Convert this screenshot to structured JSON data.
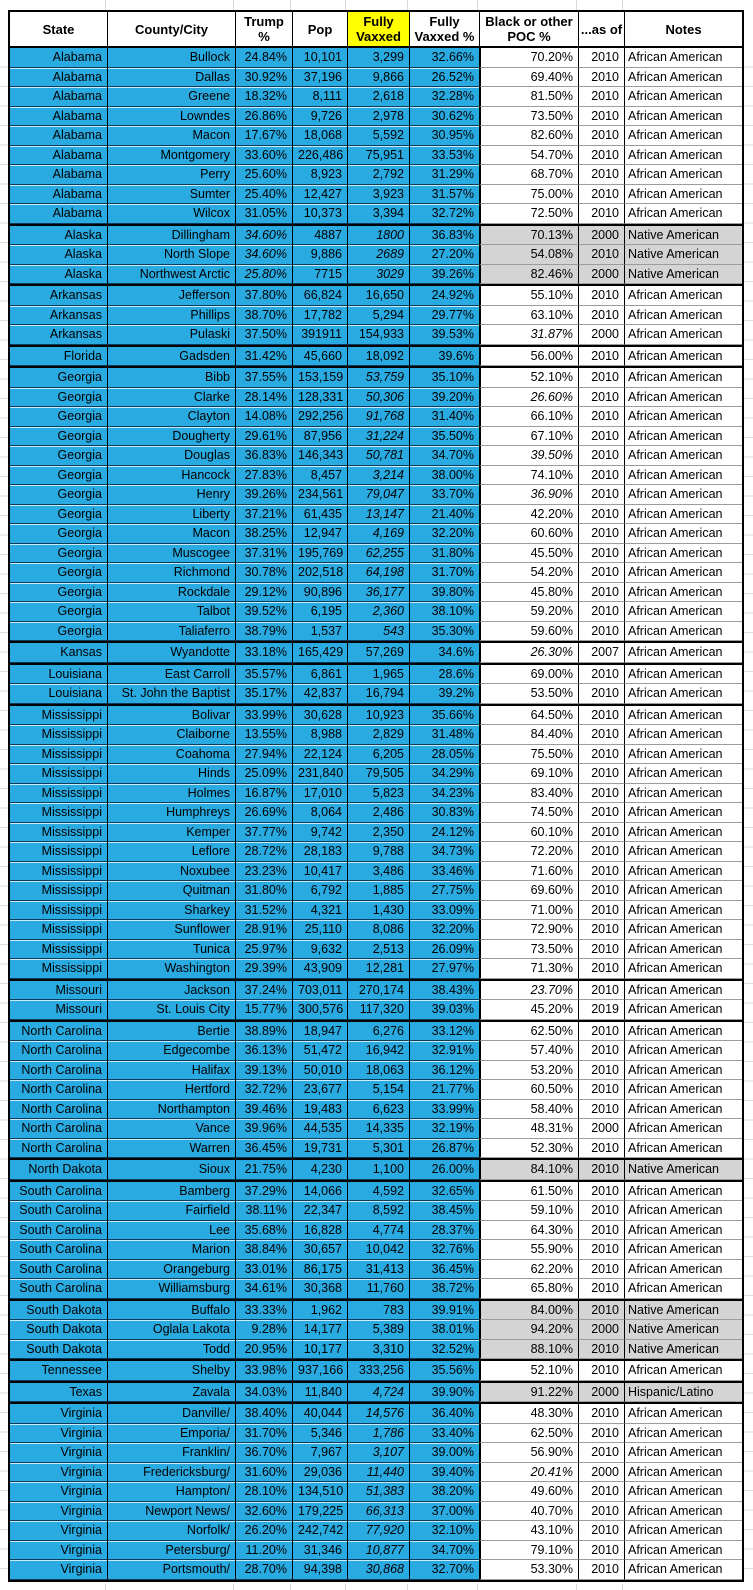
{
  "table": {
    "colors": {
      "row_blue": "#29abe2",
      "highlight_yellow": "#ffff00",
      "gray_row": "#d4d4d4",
      "border_dark": "#000000"
    },
    "keys": [
      "state",
      "county_city",
      "trump_pct",
      "pop",
      "fully_vaxxed",
      "fully_vaxxed_pct",
      "poc_pct",
      "as_of",
      "notes"
    ],
    "headers": [
      {
        "label": "State"
      },
      {
        "label": "County/City"
      },
      {
        "label": "Trump %"
      },
      {
        "label": "Pop"
      },
      {
        "label": "Fully Vaxxed",
        "highlight": true
      },
      {
        "label": "Fully Vaxxed %"
      },
      {
        "label": "Black or other POC %"
      },
      {
        "label": "...as of"
      },
      {
        "label": "Notes"
      }
    ],
    "flag_legend": "s=start of state group (thick border), g=gray shaded right columns, i=italic cells (t=trump, v=fully vaxxed, p=poc)",
    "rows": [
      [
        "Alabama",
        "Bullock",
        "24.84%",
        "10,101",
        "3,299",
        "32.66%",
        "70.20%",
        "2010",
        "African American",
        {
          "s": 1
        }
      ],
      [
        "Alabama",
        "Dallas",
        "30.92%",
        "37,196",
        "9,866",
        "26.52%",
        "69.40%",
        "2010",
        "African American"
      ],
      [
        "Alabama",
        "Greene",
        "18.32%",
        "8,111",
        "2,618",
        "32.28%",
        "81.50%",
        "2010",
        "African American"
      ],
      [
        "Alabama",
        "Lowndes",
        "26.86%",
        "9,726",
        "2,978",
        "30.62%",
        "73.50%",
        "2010",
        "African American"
      ],
      [
        "Alabama",
        "Macon",
        "17.67%",
        "18,068",
        "5,592",
        "30.95%",
        "82.60%",
        "2010",
        "African American"
      ],
      [
        "Alabama",
        "Montgomery",
        "33.60%",
        "226,486",
        "75,951",
        "33.53%",
        "54.70%",
        "2010",
        "African American"
      ],
      [
        "Alabama",
        "Perry",
        "25.60%",
        "8,923",
        "2,792",
        "31.29%",
        "68.70%",
        "2010",
        "African American"
      ],
      [
        "Alabama",
        "Sumter",
        "25.40%",
        "12,427",
        "3,923",
        "31.57%",
        "75.00%",
        "2010",
        "African American"
      ],
      [
        "Alabama",
        "Wilcox",
        "31.05%",
        "10,373",
        "3,394",
        "32.72%",
        "72.50%",
        "2010",
        "African American"
      ],
      [
        "Alaska",
        "Dillingham",
        "34.60%",
        "4887",
        "1800",
        "36.83%",
        "70.13%",
        "2000",
        "Native American",
        {
          "s": 1,
          "g": 1,
          "i": "tv"
        }
      ],
      [
        "Alaska",
        "North Slope",
        "34.60%",
        "9,886",
        "2689",
        "27.20%",
        "54.08%",
        "2010",
        "Native American",
        {
          "g": 1,
          "i": "tv"
        }
      ],
      [
        "Alaska",
        "Northwest Arctic",
        "25.80%",
        "7715",
        "3029",
        "39.26%",
        "82.46%",
        "2000",
        "Native American",
        {
          "g": 1,
          "i": "tv"
        }
      ],
      [
        "Arkansas",
        "Jefferson",
        "37.80%",
        "66,824",
        "16,650",
        "24.92%",
        "55.10%",
        "2010",
        "African American",
        {
          "s": 1
        }
      ],
      [
        "Arkansas",
        "Phillips",
        "38.70%",
        "17,782",
        "5,294",
        "29.77%",
        "63.10%",
        "2010",
        "African American"
      ],
      [
        "Arkansas",
        "Pulaski",
        "37.50%",
        "391911",
        "154,933",
        "39.53%",
        "31.87%",
        "2000",
        "African American",
        {
          "i": "p"
        }
      ],
      [
        "Florida",
        "Gadsden",
        "31.42%",
        "45,660",
        "18,092",
        "39.6%",
        "56.00%",
        "2010",
        "African American",
        {
          "s": 1
        }
      ],
      [
        "Georgia",
        "Bibb",
        "37.55%",
        "153,159",
        "53,759",
        "35.10%",
        "52.10%",
        "2010",
        "African American",
        {
          "s": 1,
          "i": "v"
        }
      ],
      [
        "Georgia",
        "Clarke",
        "28.14%",
        "128,331",
        "50,306",
        "39.20%",
        "26.60%",
        "2010",
        "African American",
        {
          "i": "vp"
        }
      ],
      [
        "Georgia",
        "Clayton",
        "14.08%",
        "292,256",
        "91,768",
        "31.40%",
        "66.10%",
        "2010",
        "African American",
        {
          "i": "v"
        }
      ],
      [
        "Georgia",
        "Dougherty",
        "29.61%",
        "87,956",
        "31,224",
        "35.50%",
        "67.10%",
        "2010",
        "African American",
        {
          "i": "v"
        }
      ],
      [
        "Georgia",
        "Douglas",
        "36.83%",
        "146,343",
        "50,781",
        "34.70%",
        "39.50%",
        "2010",
        "African American",
        {
          "i": "vp"
        }
      ],
      [
        "Georgia",
        "Hancock",
        "27.83%",
        "8,457",
        "3,214",
        "38.00%",
        "74.10%",
        "2010",
        "African American",
        {
          "i": "v"
        }
      ],
      [
        "Georgia",
        "Henry",
        "39.26%",
        "234,561",
        "79,047",
        "33.70%",
        "36.90%",
        "2010",
        "African American",
        {
          "i": "vp"
        }
      ],
      [
        "Georgia",
        "Liberty",
        "37.21%",
        "61,435",
        "13,147",
        "21.40%",
        "42.20%",
        "2010",
        "African American",
        {
          "i": "v"
        }
      ],
      [
        "Georgia",
        "Macon",
        "38.25%",
        "12,947",
        "4,169",
        "32.20%",
        "60.60%",
        "2010",
        "African American",
        {
          "i": "v"
        }
      ],
      [
        "Georgia",
        "Muscogee",
        "37.31%",
        "195,769",
        "62,255",
        "31.80%",
        "45.50%",
        "2010",
        "African American",
        {
          "i": "v"
        }
      ],
      [
        "Georgia",
        "Richmond",
        "30.78%",
        "202,518",
        "64,198",
        "31.70%",
        "54.20%",
        "2010",
        "African American",
        {
          "i": "v"
        }
      ],
      [
        "Georgia",
        "Rockdale",
        "29.12%",
        "90,896",
        "36,177",
        "39.80%",
        "45.80%",
        "2010",
        "African American",
        {
          "i": "v"
        }
      ],
      [
        "Georgia",
        "Talbot",
        "39.52%",
        "6,195",
        "2,360",
        "38.10%",
        "59.20%",
        "2010",
        "African American",
        {
          "i": "v"
        }
      ],
      [
        "Georgia",
        "Taliaferro",
        "38.79%",
        "1,537",
        "543",
        "35.30%",
        "59.60%",
        "2010",
        "African American",
        {
          "i": "v"
        }
      ],
      [
        "Kansas",
        "Wyandotte",
        "33.18%",
        "165,429",
        "57,269",
        "34.6%",
        "26.30%",
        "2007",
        "African American",
        {
          "s": 1,
          "i": "p"
        }
      ],
      [
        "Louisiana",
        "East Carroll",
        "35.57%",
        "6,861",
        "1,965",
        "28.6%",
        "69.00%",
        "2010",
        "African American",
        {
          "s": 1
        }
      ],
      [
        "Louisiana",
        "St. John the Baptist",
        "35.17%",
        "42,837",
        "16,794",
        "39.2%",
        "53.50%",
        "2010",
        "African American"
      ],
      [
        "Mississippi",
        "Bolivar",
        "33.99%",
        "30,628",
        "10,923",
        "35.66%",
        "64.50%",
        "2010",
        "African American",
        {
          "s": 1
        }
      ],
      [
        "Mississippi",
        "Claiborne",
        "13.55%",
        "8,988",
        "2,829",
        "31.48%",
        "84.40%",
        "2010",
        "African American"
      ],
      [
        "Mississippi",
        "Coahoma",
        "27.94%",
        "22,124",
        "6,205",
        "28.05%",
        "75.50%",
        "2010",
        "African American"
      ],
      [
        "Mississippi",
        "Hinds",
        "25.09%",
        "231,840",
        "79,505",
        "34.29%",
        "69.10%",
        "2010",
        "African American"
      ],
      [
        "Mississippi",
        "Holmes",
        "16.87%",
        "17,010",
        "5,823",
        "34.23%",
        "83.40%",
        "2010",
        "African American"
      ],
      [
        "Mississippi",
        "Humphreys",
        "26.69%",
        "8,064",
        "2,486",
        "30.83%",
        "74.50%",
        "2010",
        "African American"
      ],
      [
        "Mississippi",
        "Kemper",
        "37.77%",
        "9,742",
        "2,350",
        "24.12%",
        "60.10%",
        "2010",
        "African American"
      ],
      [
        "Mississippi",
        "Leflore",
        "28.72%",
        "28,183",
        "9,788",
        "34.73%",
        "72.20%",
        "2010",
        "African American"
      ],
      [
        "Mississippi",
        "Noxubee",
        "23.23%",
        "10,417",
        "3,486",
        "33.46%",
        "71.60%",
        "2010",
        "African American"
      ],
      [
        "Mississippi",
        "Quitman",
        "31.80%",
        "6,792",
        "1,885",
        "27.75%",
        "69.60%",
        "2010",
        "African American"
      ],
      [
        "Mississippi",
        "Sharkey",
        "31.52%",
        "4,321",
        "1,430",
        "33.09%",
        "71.00%",
        "2010",
        "African American"
      ],
      [
        "Mississippi",
        "Sunflower",
        "28.91%",
        "25,110",
        "8,086",
        "32.20%",
        "72.90%",
        "2010",
        "African American"
      ],
      [
        "Mississippi",
        "Tunica",
        "25.97%",
        "9,632",
        "2,513",
        "26.09%",
        "73.50%",
        "2010",
        "African American"
      ],
      [
        "Mississippi",
        "Washington",
        "29.39%",
        "43,909",
        "12,281",
        "27.97%",
        "71.30%",
        "2010",
        "African American"
      ],
      [
        "Missouri",
        "Jackson",
        "37.24%",
        "703,011",
        "270,174",
        "38.43%",
        "23.70%",
        "2010",
        "African American",
        {
          "s": 1,
          "i": "p"
        }
      ],
      [
        "Missouri",
        "St. Louis City",
        "15.77%",
        "300,576",
        "117,320",
        "39.03%",
        "45.20%",
        "2019",
        "African American"
      ],
      [
        "North Carolina",
        "Bertie",
        "38.89%",
        "18,947",
        "6,276",
        "33.12%",
        "62.50%",
        "2010",
        "African American",
        {
          "s": 1
        }
      ],
      [
        "North Carolina",
        "Edgecombe",
        "36.13%",
        "51,472",
        "16,942",
        "32.91%",
        "57.40%",
        "2010",
        "African American"
      ],
      [
        "North Carolina",
        "Halifax",
        "39.13%",
        "50,010",
        "18,063",
        "36.12%",
        "53.20%",
        "2010",
        "African American"
      ],
      [
        "North Carolina",
        "Hertford",
        "32.72%",
        "23,677",
        "5,154",
        "21.77%",
        "60.50%",
        "2010",
        "African American"
      ],
      [
        "North Carolina",
        "Northampton",
        "39.46%",
        "19,483",
        "6,623",
        "33.99%",
        "58.40%",
        "2010",
        "African American"
      ],
      [
        "North Carolina",
        "Vance",
        "39.96%",
        "44,535",
        "14,335",
        "32.19%",
        "48.31%",
        "2000",
        "African American"
      ],
      [
        "North Carolina",
        "Warren",
        "36.45%",
        "19,731",
        "5,301",
        "26.87%",
        "52.30%",
        "2010",
        "African American"
      ],
      [
        "North Dakota",
        "Sioux",
        "21.75%",
        "4,230",
        "1,100",
        "26.00%",
        "84.10%",
        "2010",
        "Native American",
        {
          "s": 1,
          "g": 1
        }
      ],
      [
        "South Carolina",
        "Bamberg",
        "37.29%",
        "14,066",
        "4,592",
        "32.65%",
        "61.50%",
        "2010",
        "African American",
        {
          "s": 1
        }
      ],
      [
        "South Carolina",
        "Fairfield",
        "38.11%",
        "22,347",
        "8,592",
        "38.45%",
        "59.10%",
        "2010",
        "African American"
      ],
      [
        "South Carolina",
        "Lee",
        "35.68%",
        "16,828",
        "4,774",
        "28.37%",
        "64.30%",
        "2010",
        "African American"
      ],
      [
        "South Carolina",
        "Marion",
        "38.84%",
        "30,657",
        "10,042",
        "32.76%",
        "55.90%",
        "2010",
        "African American"
      ],
      [
        "South Carolina",
        "Orangeburg",
        "33.01%",
        "86,175",
        "31,413",
        "36.45%",
        "62.20%",
        "2010",
        "African American"
      ],
      [
        "South Carolina",
        "Williamsburg",
        "34.61%",
        "30,368",
        "11,760",
        "38.72%",
        "65.80%",
        "2010",
        "African American"
      ],
      [
        "South Dakota",
        "Buffalo",
        "33.33%",
        "1,962",
        "783",
        "39.91%",
        "84.00%",
        "2010",
        "Native American",
        {
          "s": 1,
          "g": 1
        }
      ],
      [
        "South Dakota",
        "Oglala Lakota",
        "9.28%",
        "14,177",
        "5,389",
        "38.01%",
        "94.20%",
        "2000",
        "Native American",
        {
          "g": 1
        }
      ],
      [
        "South Dakota",
        "Todd",
        "20.95%",
        "10,177",
        "3,310",
        "32.52%",
        "88.10%",
        "2010",
        "Native American",
        {
          "g": 1
        }
      ],
      [
        "Tennessee",
        "Shelby",
        "33.98%",
        "937,166",
        "333,256",
        "35.56%",
        "52.10%",
        "2010",
        "African American",
        {
          "s": 1
        }
      ],
      [
        "Texas",
        "Zavala",
        "34.03%",
        "11,840",
        "4,724",
        "39.90%",
        "91.22%",
        "2000",
        "Hispanic/Latino",
        {
          "s": 1,
          "g": 1,
          "i": "v"
        }
      ],
      [
        "Virginia",
        "Danville/",
        "38.40%",
        "40,044",
        "14,576",
        "36.40%",
        "48.30%",
        "2010",
        "African American",
        {
          "s": 1,
          "i": "v"
        }
      ],
      [
        "Virginia",
        "Emporia/",
        "31.70%",
        "5,346",
        "1,786",
        "33.40%",
        "62.50%",
        "2010",
        "African American",
        {
          "i": "v"
        }
      ],
      [
        "Virginia",
        "Franklin/",
        "36.70%",
        "7,967",
        "3,107",
        "39.00%",
        "56.90%",
        "2010",
        "African American",
        {
          "i": "v"
        }
      ],
      [
        "Virginia",
        "Fredericksburg/",
        "31.60%",
        "29,036",
        "11,440",
        "39.40%",
        "20.41%",
        "2000",
        "African American",
        {
          "i": "vp"
        }
      ],
      [
        "Virginia",
        "Hampton/",
        "28.10%",
        "134,510",
        "51,383",
        "38.20%",
        "49.60%",
        "2010",
        "African American",
        {
          "i": "v"
        }
      ],
      [
        "Virginia",
        "Newport News/",
        "32.60%",
        "179,225",
        "66,313",
        "37.00%",
        "40.70%",
        "2010",
        "African American",
        {
          "i": "v"
        }
      ],
      [
        "Virginia",
        "Norfolk/",
        "26.20%",
        "242,742",
        "77,920",
        "32.10%",
        "43.10%",
        "2010",
        "African American",
        {
          "i": "v"
        }
      ],
      [
        "Virginia",
        "Petersburg/",
        "11.20%",
        "31,346",
        "10,877",
        "34.70%",
        "79.10%",
        "2010",
        "African American",
        {
          "i": "v"
        }
      ],
      [
        "Virginia",
        "Portsmouth/",
        "28.70%",
        "94,398",
        "30,868",
        "32.70%",
        "53.30%",
        "2010",
        "African American",
        {
          "i": "v"
        }
      ]
    ]
  }
}
